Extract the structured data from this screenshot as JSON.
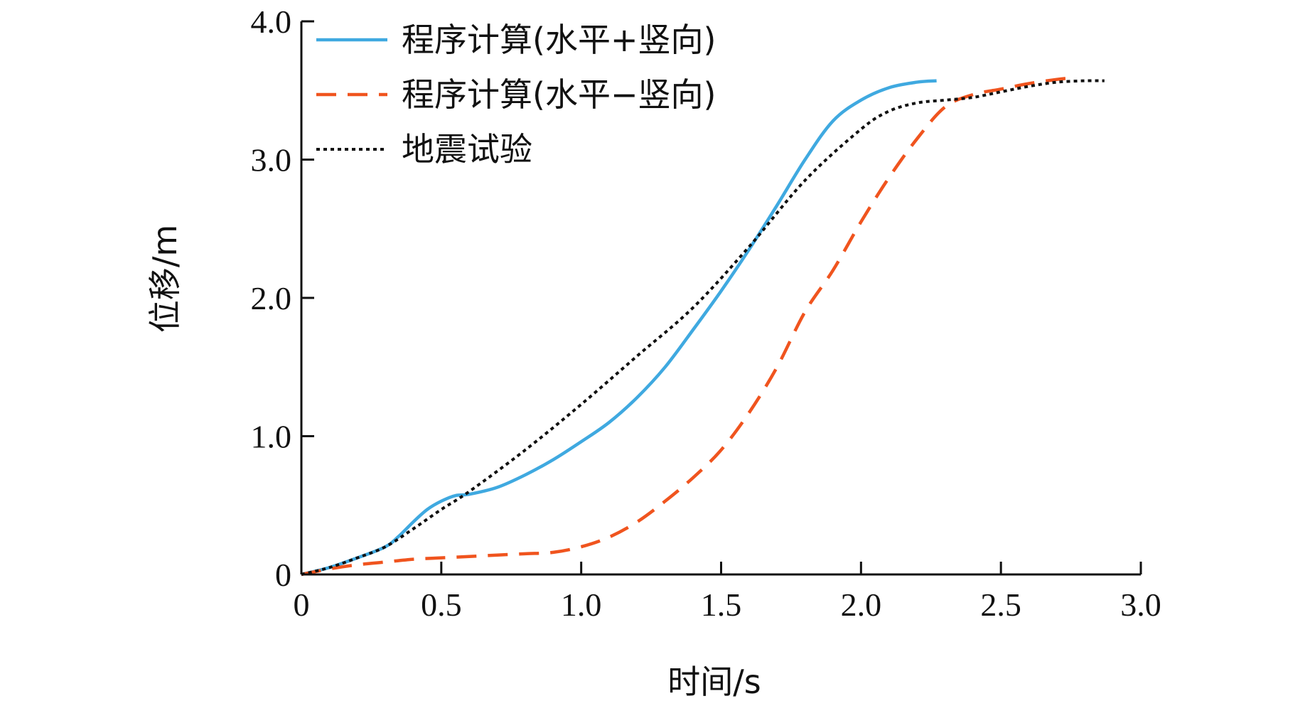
{
  "chart_data": {
    "type": "line",
    "title": "",
    "xlabel": "时间/s",
    "ylabel": "位移/m",
    "xlim": [
      0,
      3.0
    ],
    "ylim": [
      0,
      4.0
    ],
    "xticks": [
      0,
      0.5,
      1.0,
      1.5,
      2.0,
      2.5,
      3.0
    ],
    "xtick_labels": [
      "0",
      "0.5",
      "1.0",
      "1.5",
      "2.0",
      "2.5",
      "3.0"
    ],
    "yticks": [
      0,
      1.0,
      2.0,
      3.0,
      4.0
    ],
    "ytick_labels": [
      "0",
      "1.0",
      "2.0",
      "3.0",
      "4.0"
    ],
    "grid": false,
    "legend_position": "top-left",
    "series": [
      {
        "name": "程序计算(水平+竖向)",
        "color": "#3fa9e0",
        "style": "solid",
        "x": [
          0,
          0.1,
          0.2,
          0.3,
          0.35,
          0.4,
          0.45,
          0.5,
          0.55,
          0.6,
          0.7,
          0.8,
          0.9,
          1.0,
          1.1,
          1.2,
          1.3,
          1.4,
          1.5,
          1.6,
          1.7,
          1.8,
          1.9,
          2.0,
          2.1,
          2.2,
          2.27
        ],
        "y": [
          0,
          0.05,
          0.12,
          0.2,
          0.28,
          0.38,
          0.47,
          0.53,
          0.57,
          0.58,
          0.63,
          0.72,
          0.83,
          0.96,
          1.1,
          1.28,
          1.5,
          1.77,
          2.05,
          2.35,
          2.67,
          3.0,
          3.28,
          3.43,
          3.52,
          3.56,
          3.57
        ]
      },
      {
        "name": "程序计算(水平−竖向)",
        "color": "#f0541e",
        "style": "dashed",
        "x": [
          0,
          0.1,
          0.2,
          0.3,
          0.4,
          0.5,
          0.6,
          0.7,
          0.8,
          0.9,
          1.0,
          1.1,
          1.2,
          1.3,
          1.4,
          1.5,
          1.6,
          1.7,
          1.8,
          1.9,
          2.0,
          2.1,
          2.2,
          2.3,
          2.4,
          2.5,
          2.6,
          2.7,
          2.75
        ],
        "y": [
          0,
          0.04,
          0.07,
          0.09,
          0.11,
          0.12,
          0.13,
          0.14,
          0.15,
          0.16,
          0.2,
          0.27,
          0.38,
          0.53,
          0.7,
          0.9,
          1.17,
          1.5,
          1.9,
          2.2,
          2.55,
          2.87,
          3.15,
          3.38,
          3.47,
          3.51,
          3.55,
          3.58,
          3.59
        ]
      },
      {
        "name": "地震试验",
        "color": "#111111",
        "style": "dotted",
        "x": [
          0,
          0.1,
          0.2,
          0.3,
          0.4,
          0.5,
          0.6,
          0.8,
          1.0,
          1.2,
          1.4,
          1.6,
          1.8,
          2.0,
          2.1,
          2.2,
          2.3,
          2.4,
          2.5,
          2.6,
          2.7,
          2.8,
          2.87
        ],
        "y": [
          0,
          0.05,
          0.12,
          0.2,
          0.33,
          0.47,
          0.6,
          0.9,
          1.23,
          1.58,
          1.93,
          2.37,
          2.85,
          3.22,
          3.35,
          3.41,
          3.43,
          3.45,
          3.49,
          3.53,
          3.56,
          3.57,
          3.57
        ]
      }
    ]
  }
}
